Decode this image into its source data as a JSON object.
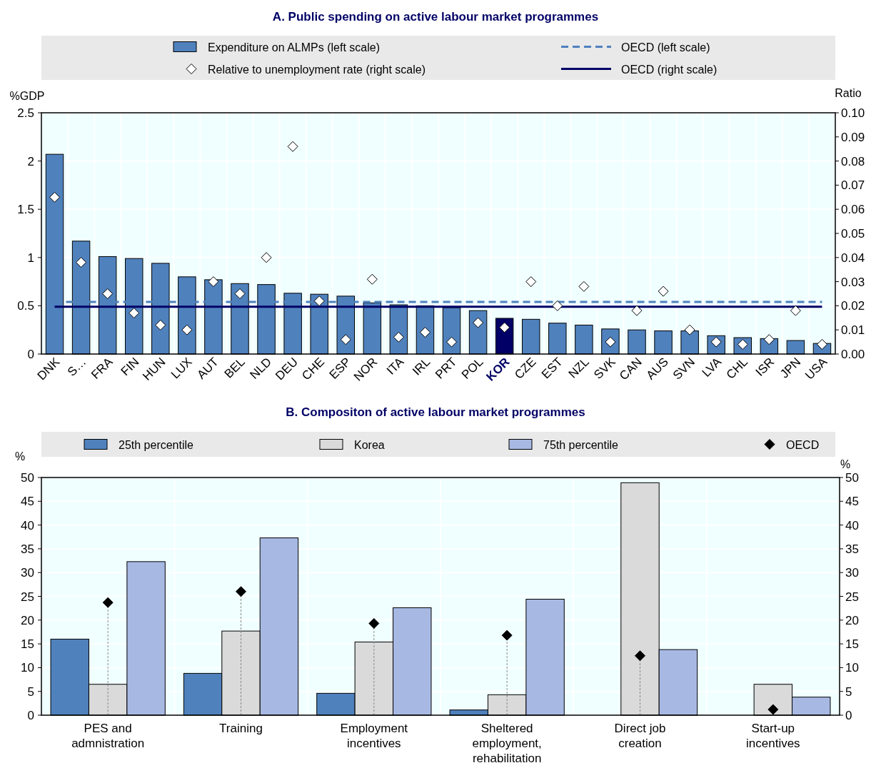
{
  "chart_data": [
    {
      "type": "bar",
      "title": "A.  Public spending on active labour market programmes",
      "ylabel": "%GDP",
      "y2label": "Ratio",
      "categories": [
        "DNK",
        "S…",
        "FRA",
        "FIN",
        "HUN",
        "LUX",
        "AUT",
        "BEL",
        "NLD",
        "DEU",
        "CHE",
        "ESP",
        "NOR",
        "ITA",
        "IRL",
        "PRT",
        "POL",
        "KOR",
        "CZE",
        "EST",
        "NZL",
        "SVK",
        "CAN",
        "AUS",
        "SVN",
        "LVA",
        "CHL",
        "ISR",
        "JPN",
        "USA"
      ],
      "series": [
        {
          "name": "Expenditure on ALMPs (left scale)",
          "color": "#4f81bd",
          "colors": [
            "#4f81bd",
            "#4f81bd",
            "#4f81bd",
            "#4f81bd",
            "#4f81bd",
            "#4f81bd",
            "#4f81bd",
            "#4f81bd",
            "#4f81bd",
            "#4f81bd",
            "#4f81bd",
            "#4f81bd",
            "#4f81bd",
            "#4f81bd",
            "#4f81bd",
            "#4f81bd",
            "#4f81bd",
            "#000066",
            "#4f81bd",
            "#4f81bd",
            "#4f81bd",
            "#4f81bd",
            "#4f81bd",
            "#4f81bd",
            "#4f81bd",
            "#4f81bd",
            "#4f81bd",
            "#4f81bd",
            "#4f81bd",
            "#4f81bd"
          ],
          "values": [
            2.07,
            1.17,
            1.01,
            0.99,
            0.94,
            0.8,
            0.77,
            0.73,
            0.72,
            0.63,
            0.62,
            0.6,
            0.53,
            0.51,
            0.5,
            0.48,
            0.45,
            0.37,
            0.36,
            0.32,
            0.3,
            0.26,
            0.25,
            0.24,
            0.24,
            0.19,
            0.17,
            0.16,
            0.14,
            0.11
          ]
        },
        {
          "name": "Relative to unemployment rate (right scale)",
          "type": "scatter",
          "axis": "y2",
          "marker": "diamond",
          "color": "#ffffff",
          "values": [
            0.065,
            0.038,
            0.025,
            0.017,
            0.012,
            0.01,
            0.03,
            0.025,
            0.04,
            0.086,
            0.022,
            0.006,
            0.031,
            0.007,
            0.009,
            0.005,
            0.013,
            0.011,
            0.03,
            0.02,
            0.028,
            0.005,
            0.018,
            0.026,
            0.01,
            0.005,
            0.004,
            0.006,
            0.018,
            0.004
          ]
        }
      ],
      "ref_lines": [
        {
          "axis": "y",
          "value": 0.54,
          "label": "OECD (left scale)",
          "color": "#4f81bd",
          "line_style": "dashed"
        },
        {
          "axis": "y2",
          "value": 0.0196,
          "label": "OECD (right scale)",
          "color": "#000066",
          "line_style": "solid"
        }
      ],
      "ylim": [
        0,
        2.5
      ],
      "yticks": [
        0,
        0.5,
        1,
        1.5,
        2,
        2.5
      ],
      "y2lim": [
        0,
        0.1
      ],
      "y2ticks": [
        {
          "value": 0,
          "label": "0.00"
        },
        {
          "value": 0.01,
          "label": "0.01"
        },
        {
          "value": 0.02,
          "label": "0.02"
        },
        {
          "value": 0.03,
          "label": "0.03"
        },
        {
          "value": 0.04,
          "label": "0.04"
        },
        {
          "value": 0.05,
          "label": "0.05"
        },
        {
          "value": 0.06,
          "label": "0.06"
        },
        {
          "value": 0.07,
          "label": "0.07"
        },
        {
          "value": 0.08,
          "label": "0.08"
        },
        {
          "value": 0.09,
          "label": "0.09"
        },
        {
          "value": 0.1,
          "label": "0.10"
        }
      ],
      "grid": true,
      "legend": "top"
    },
    {
      "type": "bar",
      "title": "B.  Compositon of active labour market programmes",
      "ylabel": "%",
      "y2label": "%",
      "categories": [
        "PES and admnistration",
        "Training",
        "Employment incentives",
        "Sheltered employment, rehabilitation",
        "Direct job creation",
        "Start-up incentives"
      ],
      "series": [
        {
          "name": "25th percentile",
          "color": "#4f81bd",
          "values": [
            16.0,
            8.8,
            4.6,
            1.1,
            0,
            0
          ]
        },
        {
          "name": "Korea",
          "color": "#dadada",
          "values": [
            6.5,
            17.7,
            15.4,
            4.3,
            48.9,
            6.5
          ]
        },
        {
          "name": "75th percentile",
          "color": "#a7b9e3",
          "values": [
            32.3,
            37.3,
            22.6,
            24.4,
            13.8,
            3.8
          ]
        },
        {
          "name": "OECD",
          "type": "lollipop",
          "marker": "diamond",
          "color": "#000000",
          "values": [
            23.7,
            26.0,
            19.3,
            16.8,
            12.5,
            1.2
          ]
        }
      ],
      "ylim": [
        0,
        50
      ],
      "yticks": [
        0,
        5,
        10,
        15,
        20,
        25,
        30,
        35,
        40,
        45,
        50
      ],
      "y2lim": [
        0,
        50
      ],
      "y2ticks": [
        0,
        5,
        10,
        15,
        20,
        25,
        30,
        35,
        40,
        45,
        50
      ],
      "grid": true,
      "legend": "top"
    }
  ]
}
